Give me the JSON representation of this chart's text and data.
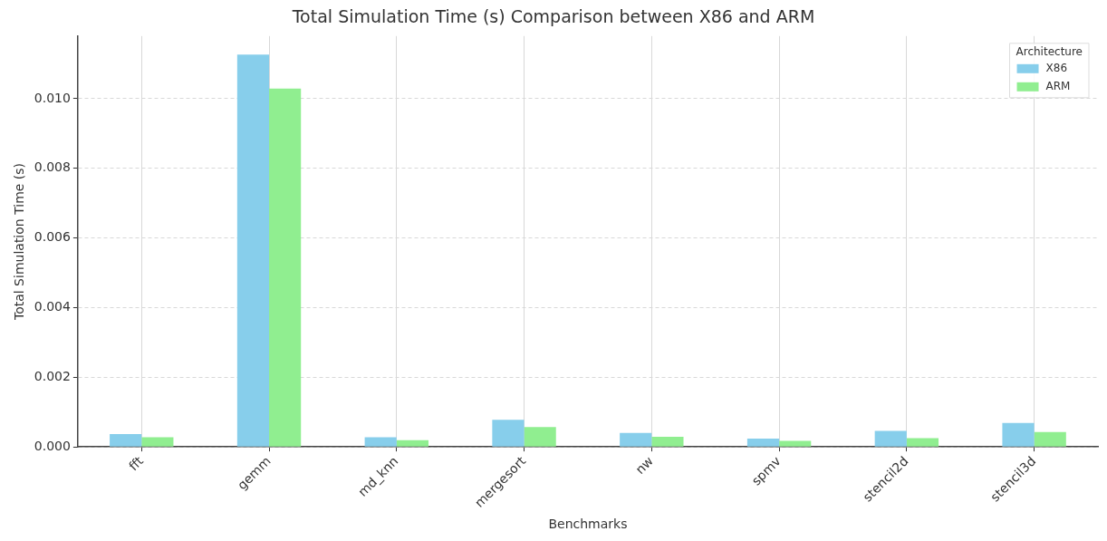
{
  "chart_data": {
    "type": "bar",
    "title": "Total Simulation Time (s) Comparison between X86 and ARM",
    "xlabel": "Benchmarks",
    "ylabel": "Total Simulation Time (s)",
    "legend_title": "Architecture",
    "categories": [
      "fft",
      "gemm",
      "md_knn",
      "mergesort",
      "nw",
      "spmv",
      "stencil2d",
      "stencil3d"
    ],
    "series": [
      {
        "name": "X86",
        "color": "#87ceeb",
        "values": [
          0.00037,
          0.01127,
          0.00028,
          0.00078,
          0.0004,
          0.00024,
          0.00046,
          0.00069
        ]
      },
      {
        "name": "ARM",
        "color": "#90ee90",
        "values": [
          0.00028,
          0.01029,
          0.00019,
          0.00057,
          0.00029,
          0.00017,
          0.00025,
          0.00043
        ]
      }
    ],
    "ylim": [
      0,
      0.0118
    ],
    "yticks": [
      {
        "value": 0,
        "label": "0.000"
      },
      {
        "value": 0.002,
        "label": "0.002"
      },
      {
        "value": 0.004,
        "label": "0.004"
      },
      {
        "value": 0.006,
        "label": "0.006"
      },
      {
        "value": 0.008,
        "label": "0.008"
      },
      {
        "value": 0.01,
        "label": "0.010"
      }
    ],
    "grid": true,
    "legend": "top right"
  }
}
